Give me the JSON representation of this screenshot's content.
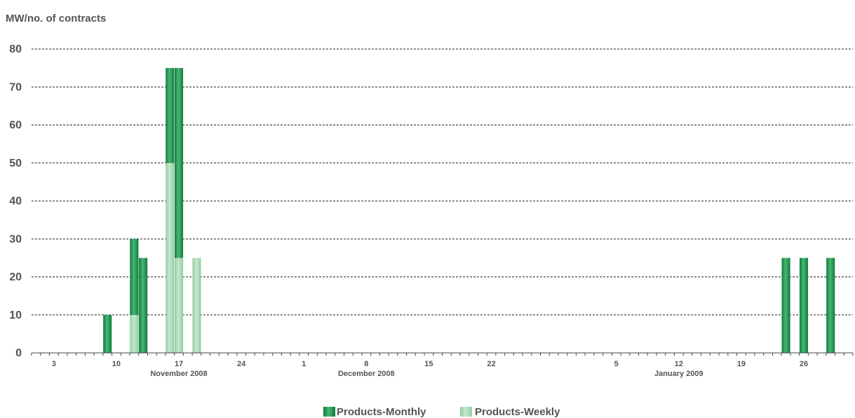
{
  "chart_data": {
    "type": "bar",
    "stacked": true,
    "ylabel": "MW/no. of contracts",
    "ylim": [
      0,
      80
    ],
    "yticks": [
      0,
      10,
      20,
      30,
      40,
      50,
      60,
      70,
      80
    ],
    "grid": true,
    "legend_position": "bottom-center",
    "x_range": [
      "2008-11-01",
      "2009-01-31"
    ],
    "x_tick_labels": [
      {
        "date": "2008-11-03",
        "label": "3"
      },
      {
        "date": "2008-11-10",
        "label": "10"
      },
      {
        "date": "2008-11-17",
        "label": "17"
      },
      {
        "date": "2008-11-24",
        "label": "24"
      },
      {
        "date": "2008-12-01",
        "label": "1"
      },
      {
        "date": "2008-12-08",
        "label": "8"
      },
      {
        "date": "2008-12-15",
        "label": "15"
      },
      {
        "date": "2008-12-22",
        "label": "22"
      },
      {
        "date": "2009-01-05",
        "label": "5"
      },
      {
        "date": "2009-01-12",
        "label": "12"
      },
      {
        "date": "2009-01-19",
        "label": "19"
      },
      {
        "date": "2009-01-26",
        "label": "26"
      }
    ],
    "month_labels": [
      {
        "date": "2008-11-17",
        "label": "November 2008"
      },
      {
        "date": "2008-12-08",
        "label": "December 2008"
      },
      {
        "date": "2009-01-12",
        "label": "January 2009"
      }
    ],
    "dates": [
      "2008-11-09",
      "2008-11-12",
      "2008-11-13",
      "2008-11-16",
      "2008-11-17",
      "2008-11-19",
      "2009-01-24",
      "2009-01-26",
      "2009-01-29"
    ],
    "series": [
      {
        "name": "Products-Weekly",
        "color": "#a8d8b4",
        "values": [
          0,
          10,
          0,
          50,
          25,
          25,
          0,
          0,
          0
        ]
      },
      {
        "name": "Products-Monthly",
        "color": "#1f9a52",
        "values": [
          10,
          20,
          25,
          25,
          50,
          0,
          25,
          25,
          25
        ]
      }
    ]
  }
}
